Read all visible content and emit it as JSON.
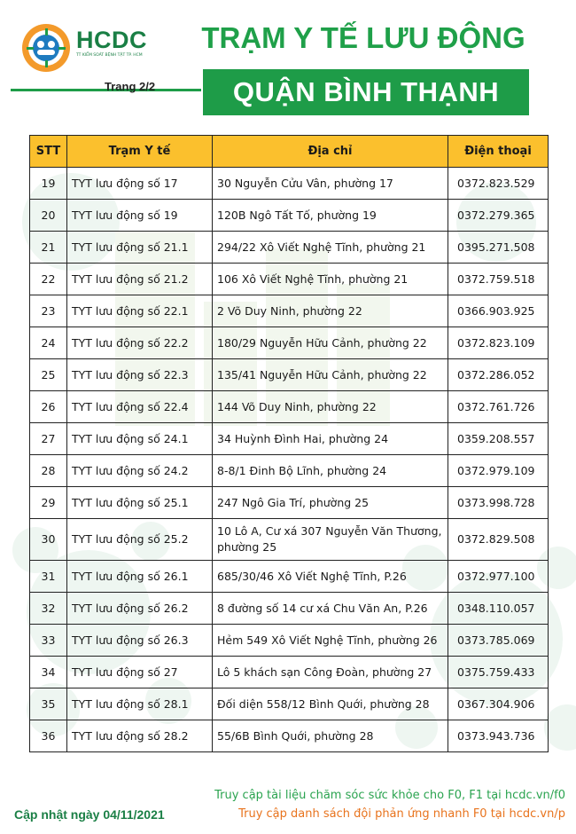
{
  "header": {
    "logo_name": "HCDC",
    "logo_sub": "TT KIỂM SOÁT BỆNH TẬT TP. HCM",
    "page_label": "Trang 2/2",
    "title": "TRẠM Y TẾ LƯU ĐỘNG",
    "subtitle": "QUẬN BÌNH THẠNH"
  },
  "table": {
    "columns": [
      "STT",
      "Trạm Y tế",
      "Địa chỉ",
      "Điện thoại"
    ],
    "rows": [
      {
        "stt": "19",
        "name": "TYT lưu động số 17",
        "address": "30 Nguyễn Cửu Vân, phường 17",
        "phone": "0372.823.529"
      },
      {
        "stt": "20",
        "name": "TYT lưu động số 19",
        "address": "120B Ngô Tất Tố, phường 19",
        "phone": "0372.279.365"
      },
      {
        "stt": "21",
        "name": "TYT lưu động số 21.1",
        "address": "294/22 Xô Viết Nghệ Tĩnh, phường 21",
        "phone": "0395.271.508"
      },
      {
        "stt": "22",
        "name": "TYT lưu động số 21.2",
        "address": "106 Xô Viết Nghệ Tĩnh, phường 21",
        "phone": "0372.759.518"
      },
      {
        "stt": "23",
        "name": "TYT lưu động số 22.1",
        "address": "2 Võ Duy Ninh, phường 22",
        "phone": "0366.903.925"
      },
      {
        "stt": "24",
        "name": "TYT lưu động số 22.2",
        "address": "180/29 Nguyễn Hữu Cảnh, phường 22",
        "phone": "0372.823.109"
      },
      {
        "stt": "25",
        "name": "TYT lưu động số 22.3",
        "address": "135/41 Nguyễn Hữu Cảnh, phường 22",
        "phone": "0372.286.052"
      },
      {
        "stt": "26",
        "name": "TYT lưu động số 22.4",
        "address": "144 Võ Duy Ninh, phường 22",
        "phone": "0372.761.726"
      },
      {
        "stt": "27",
        "name": "TYT lưu động số 24.1",
        "address": "34 Huỳnh Đình Hai, phường 24",
        "phone": "0359.208.557"
      },
      {
        "stt": "28",
        "name": "TYT lưu động số 24.2",
        "address": "8-8/1 Đinh Bộ Lĩnh, phường 24",
        "phone": "0372.979.109"
      },
      {
        "stt": "29",
        "name": "TYT lưu động số 25.1",
        "address": "247 Ngô Gia Trí, phường 25",
        "phone": "0373.998.728"
      },
      {
        "stt": "30",
        "name": "TYT lưu động số 25.2",
        "address": "10 Lô A, Cư xá 307 Nguyễn Văn Thương, phường 25",
        "phone": "0372.829.508"
      },
      {
        "stt": "31",
        "name": "TYT lưu động số 26.1",
        "address": "685/30/46 Xô Viết Nghệ Tĩnh, P.26",
        "phone": "0372.977.100"
      },
      {
        "stt": "32",
        "name": "TYT lưu động số 26.2",
        "address": "8 đường số 14 cư xá Chu Văn An, P.26",
        "phone": "0348.110.057"
      },
      {
        "stt": "33",
        "name": "TYT lưu động số 26.3",
        "address": "Hẻm 549 Xô Viết Nghệ Tĩnh, phường 26",
        "phone": "0373.785.069"
      },
      {
        "stt": "34",
        "name": "TYT lưu động số 27",
        "address": "Lô 5 khách sạn Công Đoàn, phường 27",
        "phone": "0375.759.433"
      },
      {
        "stt": "35",
        "name": "TYT lưu động số 28.1",
        "address": "Đối diện 558/12 Bình Quới, phường 28",
        "phone": "0367.304.906"
      },
      {
        "stt": "36",
        "name": "TYT lưu động số 28.2",
        "address": "55/6B Bình Quới, phường 28",
        "phone": "0373.943.736"
      }
    ]
  },
  "footer": {
    "update": "Cập nhật ngày 04/11/2021",
    "link1": "Truy cập tài liệu chăm sóc sức khỏe cho F0, F1 tại hcdc.vn/f0",
    "link2": "Truy cập danh sách đội phản ứng nhanh F0 tại hcdc.vn/p"
  },
  "colors": {
    "brand_green": "#1e9c48",
    "header_yellow": "#fbc02d",
    "footer_orange": "#e8731d"
  }
}
